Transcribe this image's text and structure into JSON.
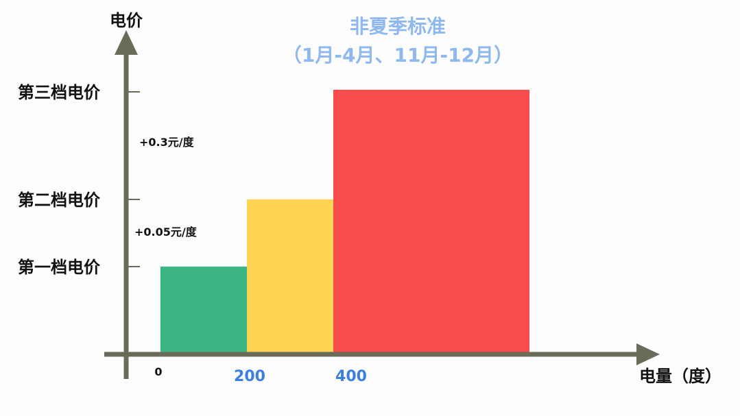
{
  "chart_data": {
    "type": "bar",
    "title": "非夏季标准",
    "subtitle": "（1月-4月、11月-12月）",
    "xlabel": "电量（度）",
    "ylabel": "电价",
    "x_ticks": [
      "0",
      "200",
      "400"
    ],
    "y_levels": [
      "第一档电价",
      "第二档电价",
      "第三档电价"
    ],
    "annotations": [
      "+0.3元/度",
      "+0.05元/度"
    ],
    "bars": [
      {
        "x_start": 0,
        "x_end": 200,
        "level": 1,
        "color": "#3cb584"
      },
      {
        "x_start": 200,
        "x_end": 400,
        "level": 2,
        "color": "#fdd354"
      },
      {
        "x_start": 400,
        "x_end": null,
        "level": 3,
        "color": "#f74c4a"
      }
    ],
    "grid": false
  }
}
